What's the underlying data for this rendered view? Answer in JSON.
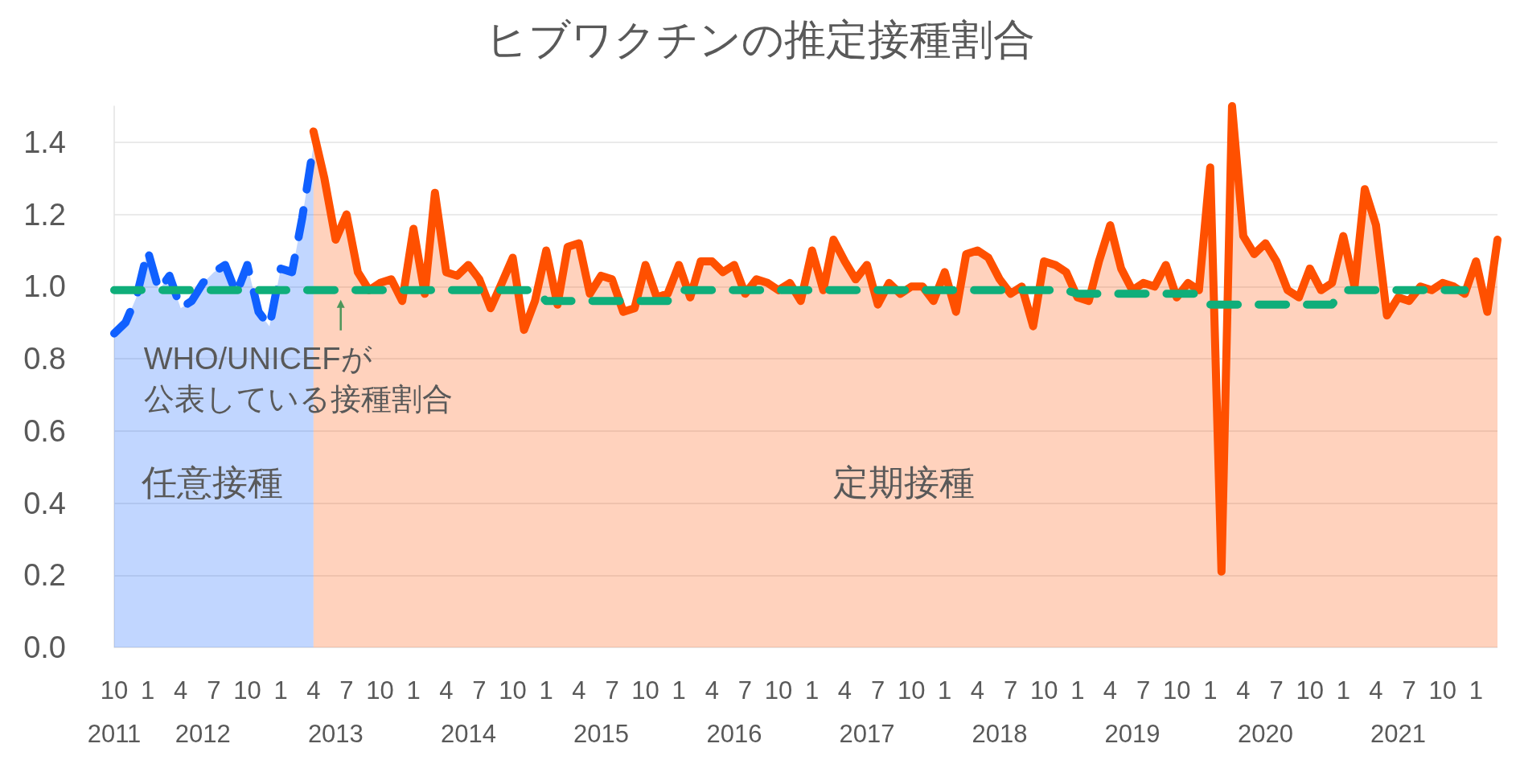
{
  "chart_data": {
    "type": "area",
    "title": "ヒブワクチンの推定接種割合",
    "x": [
      "2011-10",
      "2011-11",
      "2011-12",
      "2012-01",
      "2012-02",
      "2012-03",
      "2012-04",
      "2012-05",
      "2012-06",
      "2012-07",
      "2012-08",
      "2012-09",
      "2012-10",
      "2012-11",
      "2012-12",
      "2013-01",
      "2013-02",
      "2013-03",
      "2013-04",
      "2013-05",
      "2013-06",
      "2013-07",
      "2013-08",
      "2013-09",
      "2013-10",
      "2013-11",
      "2013-12",
      "2014-01",
      "2014-02",
      "2014-03",
      "2014-04",
      "2014-05",
      "2014-06",
      "2014-07",
      "2014-08",
      "2014-09",
      "2014-10",
      "2014-11",
      "2014-12",
      "2015-01",
      "2015-02",
      "2015-03",
      "2015-04",
      "2015-05",
      "2015-06",
      "2015-07",
      "2015-08",
      "2015-09",
      "2015-10",
      "2015-11",
      "2015-12",
      "2016-01",
      "2016-02",
      "2016-03",
      "2016-04",
      "2016-05",
      "2016-06",
      "2016-07",
      "2016-08",
      "2016-09",
      "2016-10",
      "2016-11",
      "2016-12",
      "2017-01",
      "2017-02",
      "2017-03",
      "2017-04",
      "2017-05",
      "2017-06",
      "2017-07",
      "2017-08",
      "2017-09",
      "2017-10",
      "2017-11",
      "2017-12",
      "2018-01",
      "2018-02",
      "2018-03",
      "2018-04",
      "2018-05",
      "2018-06",
      "2018-07",
      "2018-08",
      "2018-09",
      "2018-10",
      "2018-11",
      "2018-12",
      "2019-01",
      "2019-02",
      "2019-03",
      "2019-04",
      "2019-05",
      "2019-06",
      "2019-07",
      "2019-08",
      "2019-09",
      "2019-10",
      "2019-11",
      "2019-12",
      "2020-01",
      "2020-02",
      "2020-03",
      "2020-04",
      "2020-05",
      "2020-06",
      "2020-07",
      "2020-08",
      "2020-09",
      "2020-10",
      "2020-11",
      "2020-12",
      "2021-01",
      "2021-02",
      "2021-03",
      "2021-04",
      "2021-05",
      "2021-06",
      "2021-07",
      "2021-08",
      "2021-09",
      "2021-10",
      "2021-11",
      "2021-12",
      "2022-01",
      "2022-02",
      "2022-03"
    ],
    "series": [
      {
        "name": "任意接種",
        "color": "#1060ff",
        "line_style": "dashed",
        "values": [
          0.87,
          0.9,
          0.97,
          1.1,
          0.99,
          1.03,
          0.94,
          0.96,
          1.01,
          1.04,
          1.06,
          0.98,
          1.06,
          0.93,
          0.89,
          1.05,
          1.04,
          1.19,
          1.39,
          null,
          null,
          null,
          null,
          null,
          null,
          null,
          null,
          null,
          null,
          null,
          null,
          null,
          null,
          null,
          null,
          null,
          null,
          null,
          null,
          null,
          null,
          null,
          null,
          null,
          null,
          null,
          null,
          null,
          null,
          null,
          null,
          null,
          null,
          null,
          null,
          null,
          null,
          null,
          null,
          null,
          null,
          null,
          null,
          null,
          null,
          null,
          null,
          null,
          null,
          null,
          null,
          null,
          null,
          null,
          null,
          null,
          null,
          null,
          null,
          null,
          null,
          null,
          null,
          null,
          null,
          null,
          null,
          null,
          null,
          null,
          null,
          null,
          null,
          null,
          null,
          null,
          null,
          null,
          null,
          null,
          null,
          null,
          null,
          null,
          null,
          null,
          null,
          null,
          null,
          null,
          null,
          null,
          null,
          null,
          null,
          null,
          null,
          null,
          null,
          null,
          null,
          null,
          null,
          null,
          null,
          null
        ]
      },
      {
        "name": "定期接種",
        "color": "#ff5000",
        "line_style": "solid",
        "values": [
          null,
          null,
          null,
          null,
          null,
          null,
          null,
          null,
          null,
          null,
          null,
          null,
          null,
          null,
          null,
          null,
          null,
          null,
          1.43,
          1.3,
          1.13,
          1.2,
          1.04,
          0.99,
          1.01,
          1.02,
          0.96,
          1.16,
          0.98,
          1.26,
          1.04,
          1.03,
          1.06,
          1.02,
          0.94,
          1.01,
          1.08,
          0.88,
          0.96,
          1.1,
          0.95,
          1.11,
          1.12,
          0.98,
          1.03,
          1.02,
          0.93,
          0.94,
          1.06,
          0.97,
          0.98,
          1.06,
          0.97,
          1.07,
          1.07,
          1.04,
          1.06,
          0.98,
          1.02,
          1.01,
          0.99,
          1.01,
          0.96,
          1.1,
          0.99,
          1.13,
          1.07,
          1.02,
          1.06,
          0.95,
          1.01,
          0.98,
          1.0,
          1.0,
          0.96,
          1.04,
          0.93,
          1.09,
          1.1,
          1.08,
          1.02,
          0.98,
          1.0,
          0.89,
          1.07,
          1.06,
          1.04,
          0.97,
          0.96,
          1.07,
          1.17,
          1.05,
          0.99,
          1.01,
          1.0,
          1.06,
          0.97,
          1.01,
          0.99,
          1.33,
          0.21,
          1.5,
          1.14,
          1.09,
          1.12,
          1.07,
          0.99,
          0.97,
          1.05,
          0.99,
          1.01,
          1.14,
          1.0,
          1.27,
          1.17,
          0.92,
          0.97,
          0.96,
          1.0,
          0.99,
          1.01,
          1.0,
          0.98,
          1.07,
          0.93,
          1.13
        ]
      },
      {
        "type": "line",
        "color": "#0fae7a",
        "line_style": "dashed",
        "values": [
          0.99,
          0.99,
          0.99,
          0.99,
          0.99,
          0.99,
          0.99,
          0.99,
          0.99,
          0.99,
          0.99,
          0.99,
          0.99,
          0.99,
          0.99,
          0.99,
          0.99,
          0.99,
          0.99,
          0.99,
          0.99,
          0.99,
          0.99,
          0.99,
          0.99,
          0.99,
          0.99,
          0.99,
          0.99,
          0.99,
          0.99,
          0.99,
          0.99,
          0.99,
          0.99,
          0.99,
          0.99,
          0.99,
          0.99,
          0.96,
          0.96,
          0.96,
          0.96,
          0.96,
          0.96,
          0.96,
          0.96,
          0.96,
          0.96,
          0.96,
          0.96,
          0.99,
          0.99,
          0.99,
          0.99,
          0.99,
          0.99,
          0.99,
          0.99,
          0.99,
          0.99,
          0.99,
          0.99,
          0.99,
          0.99,
          0.99,
          0.99,
          0.99,
          0.99,
          0.99,
          0.99,
          0.99,
          0.99,
          0.99,
          0.99,
          0.99,
          0.99,
          0.99,
          0.99,
          0.99,
          0.99,
          0.99,
          0.99,
          0.99,
          0.99,
          0.99,
          0.99,
          0.98,
          0.98,
          0.98,
          0.98,
          0.98,
          0.98,
          0.98,
          0.98,
          0.98,
          0.98,
          0.98,
          0.98,
          0.95,
          0.95,
          0.95,
          0.95,
          0.95,
          0.95,
          0.95,
          0.95,
          0.95,
          0.95,
          0.95,
          0.95,
          0.99,
          0.99,
          0.99,
          0.99,
          0.99,
          0.99,
          0.99,
          0.99,
          0.99,
          0.99,
          0.99,
          0.99,
          null,
          null,
          null
        ]
      }
    ],
    "xlim": [
      "2011-10",
      "2022-03"
    ],
    "xticks": [
      {
        "value": "2011-10",
        "label": "10"
      },
      {
        "value": "2012-01",
        "label": "1"
      },
      {
        "value": "2012-04",
        "label": "4"
      },
      {
        "value": "2012-07",
        "label": "7"
      },
      {
        "value": "2012-10",
        "label": "10"
      },
      {
        "value": "2013-01",
        "label": "1"
      },
      {
        "value": "2013-04",
        "label": "4"
      },
      {
        "value": "2013-07",
        "label": "7"
      },
      {
        "value": "2013-10",
        "label": "10"
      },
      {
        "value": "2014-01",
        "label": "1"
      },
      {
        "value": "2014-04",
        "label": "4"
      },
      {
        "value": "2014-07",
        "label": "7"
      },
      {
        "value": "2014-10",
        "label": "10"
      },
      {
        "value": "2015-01",
        "label": "1"
      },
      {
        "value": "2015-04",
        "label": "4"
      },
      {
        "value": "2015-07",
        "label": "7"
      },
      {
        "value": "2015-10",
        "label": "10"
      },
      {
        "value": "2016-01",
        "label": "1"
      },
      {
        "value": "2016-04",
        "label": "4"
      },
      {
        "value": "2016-07",
        "label": "7"
      },
      {
        "value": "2016-10",
        "label": "10"
      },
      {
        "value": "2017-01",
        "label": "1"
      },
      {
        "value": "2017-04",
        "label": "4"
      },
      {
        "value": "2017-07",
        "label": "7"
      },
      {
        "value": "2017-10",
        "label": "10"
      },
      {
        "value": "2018-01",
        "label": "1"
      },
      {
        "value": "2018-04",
        "label": "4"
      },
      {
        "value": "2018-07",
        "label": "7"
      },
      {
        "value": "2018-10",
        "label": "10"
      },
      {
        "value": "2019-01",
        "label": "1"
      },
      {
        "value": "2019-04",
        "label": "4"
      },
      {
        "value": "2019-07",
        "label": "7"
      },
      {
        "value": "2019-10",
        "label": "10"
      },
      {
        "value": "2020-01",
        "label": "1"
      },
      {
        "value": "2020-04",
        "label": "4"
      },
      {
        "value": "2020-07",
        "label": "7"
      },
      {
        "value": "2020-10",
        "label": "10"
      },
      {
        "value": "2021-01",
        "label": "1"
      },
      {
        "value": "2021-04",
        "label": "4"
      },
      {
        "value": "2021-07",
        "label": "7"
      },
      {
        "value": "2021-10",
        "label": "10"
      },
      {
        "value": "2022-01",
        "label": "1"
      }
    ],
    "x2lim": [
      "2011-10",
      "2022-03"
    ],
    "x2ticks": [
      {
        "value": "2011-10",
        "label": "2011"
      },
      {
        "value": "2012-06",
        "label": "2012"
      },
      {
        "value": "2013-06",
        "label": "2013"
      },
      {
        "value": "2014-06",
        "label": "2014"
      },
      {
        "value": "2015-06",
        "label": "2015"
      },
      {
        "value": "2016-06",
        "label": "2016"
      },
      {
        "value": "2017-06",
        "label": "2017"
      },
      {
        "value": "2018-06",
        "label": "2018"
      },
      {
        "value": "2019-06",
        "label": "2019"
      },
      {
        "value": "2020-06",
        "label": "2020"
      },
      {
        "value": "2021-06",
        "label": "2021"
      }
    ],
    "ylim": [
      0,
      1.5
    ],
    "yticks": [
      {
        "value": 0,
        "label": "0.0"
      },
      {
        "value": 0.2,
        "label": "0.2"
      },
      {
        "value": 0.4,
        "label": "0.4"
      },
      {
        "value": 0.6,
        "label": "0.6"
      },
      {
        "value": 0.8,
        "label": "0.8"
      },
      {
        "value": 1,
        "label": "1.0"
      },
      {
        "value": 1.2,
        "label": "1.2"
      },
      {
        "value": 1.4,
        "label": "1.4"
      }
    ],
    "grid": "y",
    "legend": false,
    "annotations": [
      {
        "text": "WHO/UNICEFが公表している接種割合",
        "x": "2013-06-15",
        "y": 0.99
      }
    ]
  }
}
